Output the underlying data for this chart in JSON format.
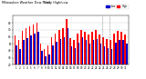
{
  "title": "Milwaukee Weather Dew Point",
  "subtitle": "Daily High/Low",
  "bar_width": 0.4,
  "days": [
    1,
    2,
    3,
    4,
    5,
    6,
    7,
    8,
    9,
    10,
    11,
    12,
    13,
    14,
    15,
    16,
    17,
    18,
    19,
    20,
    21,
    22,
    23,
    24,
    25,
    26,
    27,
    28,
    29,
    30,
    31
  ],
  "highs": [
    62,
    55,
    68,
    72,
    75,
    78,
    80,
    50,
    42,
    48,
    60,
    65,
    70,
    72,
    85,
    58,
    55,
    65,
    70,
    67,
    63,
    67,
    70,
    63,
    60,
    57,
    55,
    65,
    68,
    67,
    63
  ],
  "lows": [
    48,
    42,
    55,
    58,
    62,
    65,
    67,
    40,
    32,
    35,
    48,
    53,
    57,
    60,
    72,
    46,
    44,
    52,
    60,
    55,
    50,
    55,
    57,
    50,
    46,
    44,
    42,
    52,
    55,
    55,
    50
  ],
  "high_color": "#ff0000",
  "low_color": "#0000cc",
  "ylim_min": 20,
  "ylim_max": 90,
  "yticks": [
    20,
    30,
    40,
    50,
    60,
    70,
    80
  ],
  "bg_color": "#ffffff",
  "plot_bg": "#ffffff",
  "grid_color": "#cccccc",
  "dashed_vline_positions": [
    23.5,
    25.5
  ],
  "legend_high": "High",
  "legend_low": "Low"
}
